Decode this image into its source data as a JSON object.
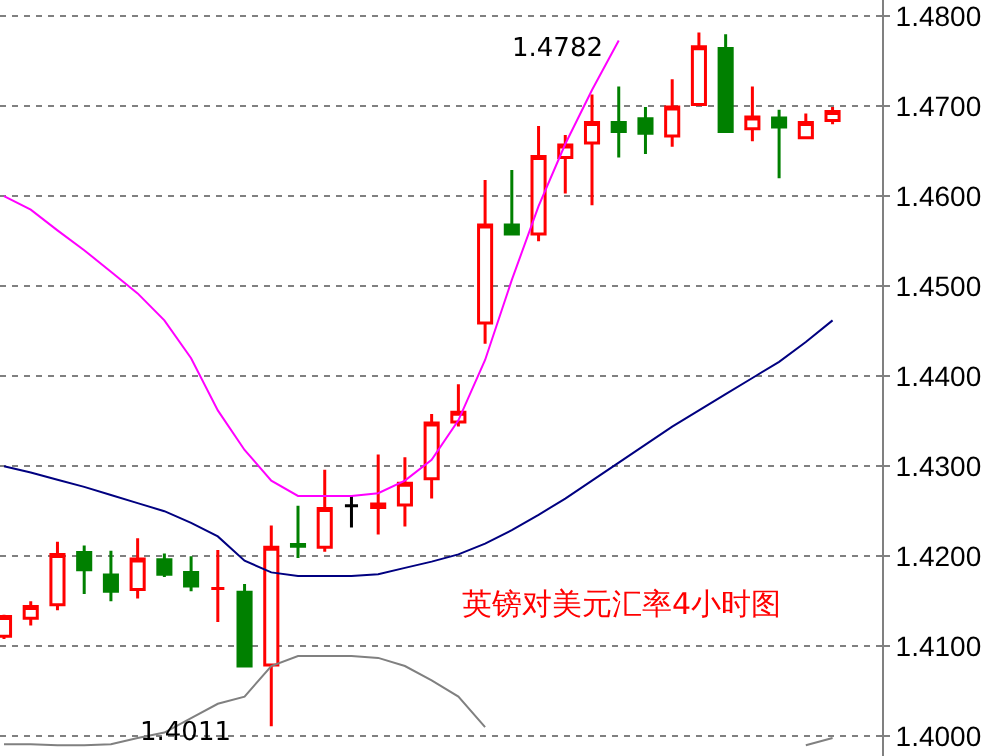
{
  "chart_data": {
    "type": "candlestick",
    "categories": [
      null,
      null,
      null,
      null,
      null,
      null,
      null,
      null,
      null,
      null,
      null,
      null,
      null,
      null,
      null,
      null,
      null,
      null,
      null,
      null,
      null,
      null,
      null,
      null,
      null,
      null,
      null,
      null,
      null,
      null,
      null,
      null
    ],
    "ohlc": [
      [
        1.4111,
        1.4135,
        1.4108,
        1.4133
      ],
      [
        1.4131,
        1.415,
        1.4123,
        1.4144
      ],
      [
        1.4146,
        1.4216,
        1.414,
        1.4202
      ],
      [
        1.4204,
        1.4212,
        1.4158,
        1.4185
      ],
      [
        1.4179,
        1.4206,
        1.415,
        1.4161
      ],
      [
        1.4163,
        1.422,
        1.4153,
        1.4197
      ],
      [
        1.4196,
        1.4203,
        1.4177,
        1.418
      ],
      [
        1.4182,
        1.42,
        1.4161,
        1.4167
      ],
      [
        1.4164,
        1.4207,
        1.4127,
        1.4164
      ],
      [
        1.416,
        1.4169,
        1.4078,
        1.4078
      ],
      [
        1.4079,
        1.4234,
        1.4011,
        1.421
      ],
      [
        1.4213,
        1.4256,
        1.4198,
        1.4211
      ],
      [
        1.421,
        1.4296,
        1.4205,
        1.4253
      ],
      [
        1.4256,
        1.4267,
        1.4232,
        1.4256
      ],
      [
        1.4254,
        1.4313,
        1.4224,
        1.4258
      ],
      [
        1.4257,
        1.431,
        1.4233,
        1.4281
      ],
      [
        1.4286,
        1.4358,
        1.4264,
        1.4348
      ],
      [
        1.4349,
        1.4391,
        1.4344,
        1.436
      ],
      [
        1.4459,
        1.4618,
        1.4436,
        1.4568
      ],
      [
        1.4568,
        1.4629,
        1.4558,
        1.4558
      ],
      [
        1.4558,
        1.4678,
        1.455,
        1.4644
      ],
      [
        1.4643,
        1.4668,
        1.4603,
        1.4657
      ],
      [
        1.4659,
        1.4713,
        1.459,
        1.4682
      ],
      [
        1.4682,
        1.4722,
        1.4643,
        1.4672
      ],
      [
        1.4686,
        1.4699,
        1.4647,
        1.467
      ],
      [
        1.4667,
        1.473,
        1.4655,
        1.4699
      ],
      [
        1.4702,
        1.4782,
        1.4702,
        1.4766
      ],
      [
        1.4764,
        1.478,
        1.4672,
        1.4672
      ],
      [
        1.4675,
        1.4722,
        1.4661,
        1.4688
      ],
      [
        1.4687,
        1.4696,
        1.462,
        1.4677
      ],
      [
        1.4665,
        1.4692,
        1.4664,
        1.4682
      ],
      [
        1.4684,
        1.4699,
        1.468,
        1.4694
      ]
    ],
    "colors": [
      "#ff0000",
      "#ff0000",
      "#ff0000",
      "#008000",
      "#008000",
      "#ff0000",
      "#008000",
      "#008000",
      "#ff0000",
      "#008000",
      "#ff0000",
      "#008000",
      "#ff0000",
      "#000000",
      "#ff0000",
      "#ff0000",
      "#ff0000",
      "#ff0000",
      "#ff0000",
      "#008000",
      "#ff0000",
      "#ff0000",
      "#ff0000",
      "#008000",
      "#008000",
      "#ff0000",
      "#ff0000",
      "#008000",
      "#ff0000",
      "#008000",
      "#ff0000",
      "#ff0000"
    ],
    "series": [
      {
        "type": "line",
        "color": "#ff00ff",
        "values": [
          1.46,
          1.4585,
          1.4562,
          1.454,
          1.4516,
          1.4492,
          1.4462,
          1.442,
          1.4362,
          1.4318,
          1.4284,
          1.4267,
          1.4267,
          1.4267,
          1.427,
          1.4284,
          1.4307,
          1.4351,
          1.4418,
          1.4507,
          1.4589,
          1.4658,
          1.4718,
          1.4773,
          null,
          null,
          null,
          null,
          null,
          null,
          null,
          null
        ]
      },
      {
        "type": "line",
        "color": "#000080",
        "values": [
          1.43,
          1.4293,
          1.4285,
          1.4277,
          1.4268,
          1.4259,
          1.425,
          1.4237,
          1.4222,
          1.4195,
          1.4182,
          1.4178,
          1.4178,
          1.4178,
          1.418,
          1.4187,
          1.4194,
          1.4202,
          1.4214,
          1.4229,
          1.4246,
          1.4264,
          1.4284,
          1.4304,
          1.4324,
          1.4344,
          1.4362,
          1.438,
          1.4398,
          1.4416,
          1.4438,
          1.4462
        ]
      },
      {
        "type": "line",
        "color": "#808080",
        "values": [
          1.3991,
          1.3991,
          1.399,
          1.399,
          1.3991,
          1.3998,
          1.4004,
          1.402,
          1.4036,
          1.4044,
          1.4078,
          1.4089,
          1.4089,
          1.4089,
          1.4087,
          1.4078,
          1.4062,
          1.4044,
          1.401,
          null,
          null,
          null,
          null,
          null,
          null,
          null,
          null,
          null,
          null,
          null,
          1.399,
          1.3998
        ]
      }
    ],
    "ylim": [
      1.3978,
      1.4818
    ],
    "yticks": [
      {
        "value": 1.4,
        "label": "1.4000"
      },
      {
        "value": 1.41,
        "label": "1.4100"
      },
      {
        "value": 1.42,
        "label": "1.4200"
      },
      {
        "value": 1.43,
        "label": "1.4300"
      },
      {
        "value": 1.44,
        "label": "1.4400"
      },
      {
        "value": 1.45,
        "label": "1.4500"
      },
      {
        "value": 1.46,
        "label": "1.4600"
      },
      {
        "value": 1.47,
        "label": "1.4700"
      },
      {
        "value": 1.48,
        "label": "1.4800"
      }
    ],
    "grid": "y",
    "tick_labels": "y",
    "annotations": [
      "1.4011",
      "1.4782",
      "英镑对美元汇率4小时图"
    ]
  }
}
